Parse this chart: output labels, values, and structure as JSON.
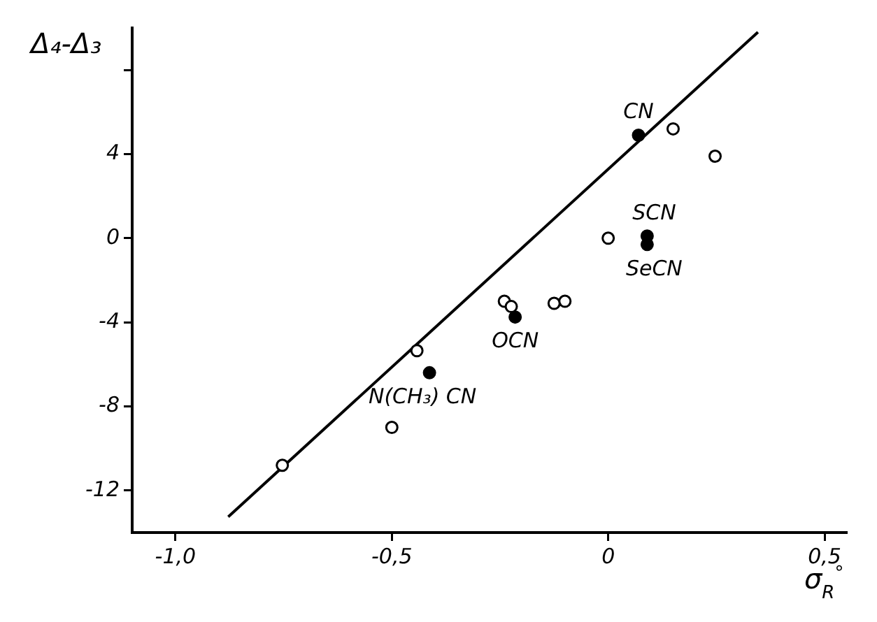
{
  "chart_data": {
    "type": "scatter",
    "xlabel": "σ$_{R}$$^{°}$",
    "ylabel": "Δ₄-Δ₃",
    "xlim": [
      -1.1,
      0.55
    ],
    "ylim": [
      -14,
      10
    ],
    "xticks": [
      {
        "value": -1,
        "label": "-1,0"
      },
      {
        "value": -0.5,
        "label": "-0,5"
      },
      0,
      {
        "value": 0.5,
        "label": "0,5"
      }
    ],
    "yticks": [
      -12,
      -8,
      -4,
      0,
      4,
      {
        "value": 8,
        "label": null
      }
    ],
    "grid": false,
    "legend": false,
    "marker": "circle",
    "series": [
      {
        "color": "#000000",
        "x": [
          -0.753,
          -0.5,
          -0.442,
          -0.24,
          -0.224,
          -0.125,
          -0.1,
          0.0,
          0.15,
          0.247
        ],
        "values": [
          -10.8,
          -9.0,
          -5.35,
          -3.0,
          -3.25,
          -3.1,
          -3.0,
          0.0,
          5.2,
          3.9
        ]
      },
      {
        "color": "#000000",
        "x": [
          0.07,
          0.09,
          0.09,
          -0.215,
          -0.413
        ],
        "values": [
          4.9,
          0.1,
          -0.3,
          -3.75,
          -6.4
        ]
      },
      {
        "type": "line",
        "color": "#000000",
        "line_style": "solid",
        "marker": "none",
        "x": [
          -0.878,
          0.346
        ],
        "values": [
          -13.25,
          9.8
        ]
      }
    ],
    "annotations": [
      {
        "text": "CN",
        "x": 0.07,
        "y": 4.9
      },
      {
        "text": "SCN",
        "x": 0.09,
        "y": 0.1
      },
      {
        "text": "SeCN",
        "x": 0.09,
        "y": -0.3
      },
      {
        "text": "OCN",
        "x": -0.215,
        "y": -3.75
      },
      {
        "text": "N(CH₃) CN",
        "x": -0.413,
        "y": -6.4
      }
    ]
  }
}
